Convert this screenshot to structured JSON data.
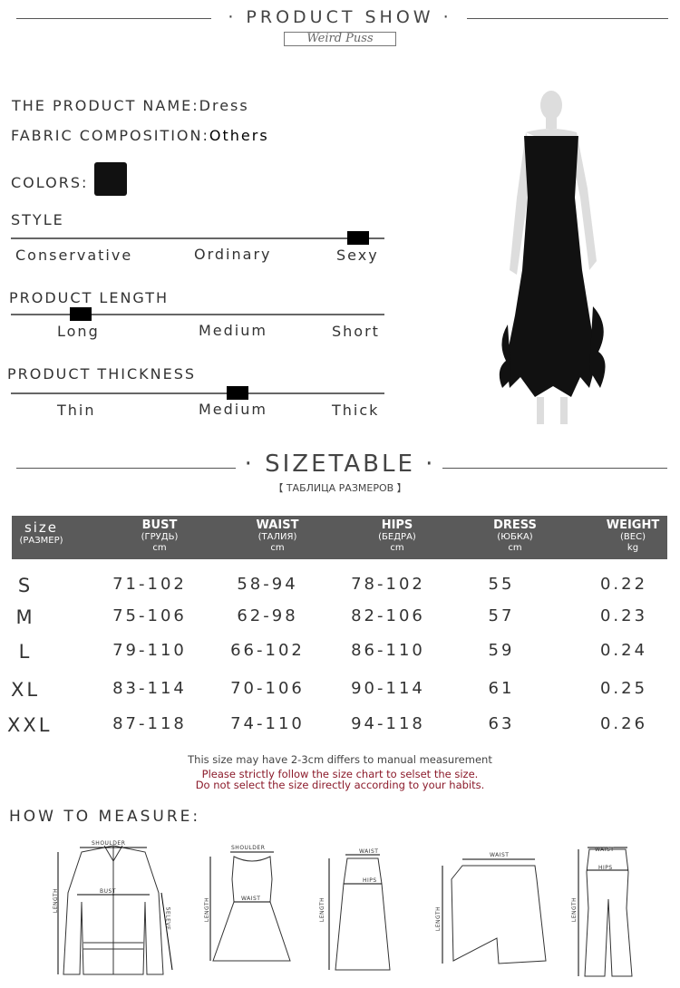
{
  "header": {
    "title": "PRODUCT SHOW",
    "brand": "Weird Puss"
  },
  "product": {
    "name_label": "THE PRODUCT NAME:",
    "name": "Dress",
    "fabric_label": "FABRIC COMPOSITION:",
    "fabric": "Others",
    "colors_label": "COLORS:",
    "color_swatch": "#111111"
  },
  "style": {
    "label": "STYLE",
    "options": [
      "Conservative",
      "Ordinary",
      "Sexy"
    ],
    "selected": "Sexy"
  },
  "length": {
    "label": "PRODUCT LENGTH",
    "options": [
      "Long",
      "Medium",
      "Short"
    ],
    "selected": "Long"
  },
  "thickness": {
    "label": "PRODUCT THICKNESS",
    "options": [
      "Thin",
      "Medium",
      "Thick"
    ],
    "selected": "Medium"
  },
  "sizetable": {
    "title": "SIZETABLE",
    "subtitle": "【 ТАБЛИЦА РАЗМЕРОВ 】",
    "headers": [
      {
        "name": "size",
        "ru": "(РАЗМЕР)",
        "unit": ""
      },
      {
        "name": "BUST",
        "ru": "(ГРУДЬ)",
        "unit": "cm"
      },
      {
        "name": "WAIST",
        "ru": "(ТАЛИЯ)",
        "unit": "cm"
      },
      {
        "name": "HIPS",
        "ru": "(БЕДРА)",
        "unit": "cm"
      },
      {
        "name": "DRESS",
        "ru": "(ЮБКА)",
        "unit": "cm"
      },
      {
        "name": "WEIGHT",
        "ru": "(ВЕС)",
        "unit": "kg"
      }
    ],
    "rows": [
      [
        "S",
        "71-102",
        "58-94",
        "78-102",
        "55",
        "0.22"
      ],
      [
        "M",
        "75-106",
        "62-98",
        "82-106",
        "57",
        "0.23"
      ],
      [
        "L",
        "79-110",
        "66-102",
        "86-110",
        "59",
        "0.24"
      ],
      [
        "XL",
        "83-114",
        "70-106",
        "90-114",
        "61",
        "0.25"
      ],
      [
        "XXL",
        "87-118",
        "74-110",
        "94-118",
        "63",
        "0.26"
      ]
    ]
  },
  "notes": {
    "line1": "This size may have 2-3cm differs to manual measurement",
    "line2": "Please strictly follow the size chart to selset the size.",
    "line3": "Do not select the size directly according to your habits.",
    "warn_color": "#8b1a2a"
  },
  "measure": {
    "title": "HOW TO MEASURE:",
    "labels": {
      "shoulder": "SHOULDER",
      "bust": "BUST",
      "length": "LENGTH",
      "sleeve": "SELEVE",
      "waist": "WAIST",
      "hips": "HIPS"
    }
  }
}
